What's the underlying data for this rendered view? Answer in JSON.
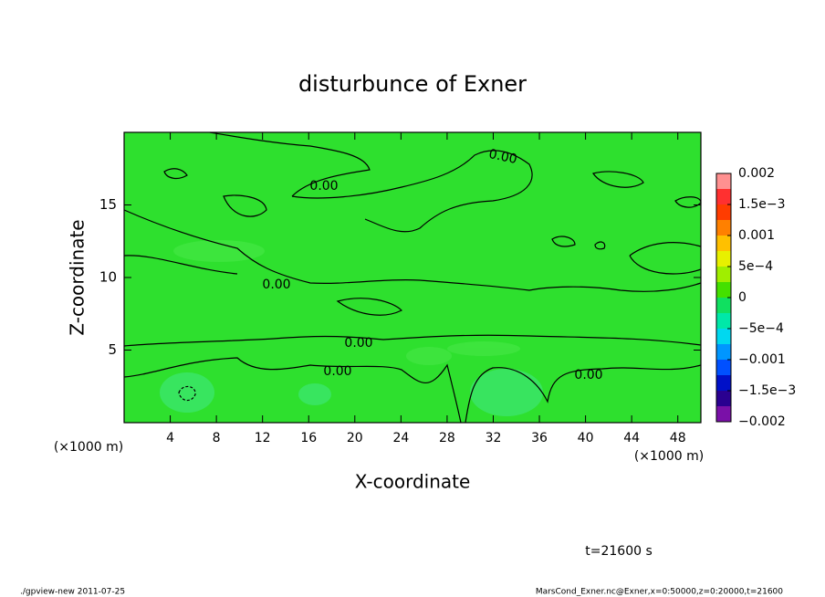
{
  "chart_data": {
    "type": "contour",
    "title": "disturbunce of Exner",
    "xlabel": "X-coordinate",
    "ylabel": "Z-coordinate",
    "x_unit_left": "(×1000 m)",
    "x_unit_right": "(×1000 m)",
    "xlim": [
      0,
      50
    ],
    "xticks": [
      4,
      8,
      12,
      16,
      20,
      24,
      28,
      32,
      36,
      40,
      44,
      48
    ],
    "ylim": [
      0,
      20
    ],
    "yticks": [
      5,
      10,
      15
    ],
    "field_color": "#2ee02e",
    "contour_color": "#000000",
    "contour_labels": [
      "0.00",
      "0.00",
      "0.00",
      "0.00",
      "0.00",
      "0.00"
    ],
    "colorbar": {
      "lim": [
        -0.002,
        0.002
      ],
      "colors": [
        "#7a10a8",
        "#2a0090",
        "#0010c8",
        "#0050ff",
        "#0096ff",
        "#00d8f0",
        "#00e8a8",
        "#10e060",
        "#44e000",
        "#a0ee00",
        "#e8f000",
        "#ffc000",
        "#ff8000",
        "#ff3c00",
        "#ff3030",
        "#ff9090"
      ],
      "ticks": [
        {
          "value": 0.002,
          "label": "0.002"
        },
        {
          "value": 0.0015,
          "label": "1.5e−3"
        },
        {
          "value": 0.001,
          "label": "0.001"
        },
        {
          "value": 0.0005,
          "label": "5e−4"
        },
        0,
        {
          "value": -0.0005,
          "label": "−5e−4"
        },
        {
          "value": -0.001,
          "label": "−0.001"
        },
        {
          "value": -0.0015,
          "label": "−1.5e−3"
        },
        {
          "value": -0.002,
          "label": "−0.002"
        }
      ]
    },
    "time_label": "t=21600 s",
    "footer_left": "./gpview-new  2011-07-25",
    "footer_right": "MarsCond_Exner.nc@Exner,x=0:50000,z=0:20000,t=21600"
  }
}
